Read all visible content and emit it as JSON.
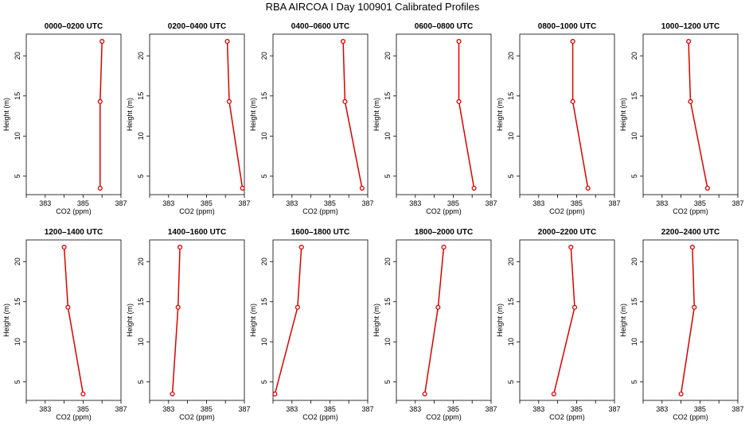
{
  "title": "RBA AIRCOA I  Day 100901  Calibrated Profiles",
  "chart_data": {
    "type": "line",
    "xlabel": "CO2 (ppm)",
    "ylabel": "Height (m)",
    "xlim": [
      382,
      387
    ],
    "ylim": [
      2.7,
      22.7
    ],
    "xticks": [
      383,
      385,
      387
    ],
    "yticks": [
      5,
      10,
      15,
      20
    ],
    "grid": false,
    "series_color": "#dd0000",
    "panels": [
      {
        "title": "0000–0200 UTC",
        "x": [
          385.9,
          385.9,
          386.0
        ],
        "y": [
          3.5,
          14.3,
          21.8
        ]
      },
      {
        "title": "0200–0400 UTC",
        "x": [
          386.9,
          386.2,
          386.1
        ],
        "y": [
          3.5,
          14.3,
          21.8
        ]
      },
      {
        "title": "0400–0600 UTC",
        "x": [
          386.7,
          385.8,
          385.7
        ],
        "y": [
          3.5,
          14.3,
          21.8
        ]
      },
      {
        "title": "0600–0800 UTC",
        "x": [
          386.1,
          385.3,
          385.3
        ],
        "y": [
          3.5,
          14.3,
          21.8
        ]
      },
      {
        "title": "0800–1000 UTC",
        "x": [
          385.6,
          384.8,
          384.8
        ],
        "y": [
          3.5,
          14.3,
          21.8
        ]
      },
      {
        "title": "1000–1200 UTC",
        "x": [
          385.4,
          384.5,
          384.4
        ],
        "y": [
          3.5,
          14.3,
          21.8
        ]
      },
      {
        "title": "1200–1400 UTC",
        "x": [
          385.0,
          384.2,
          384.0
        ],
        "y": [
          3.5,
          14.3,
          21.8
        ]
      },
      {
        "title": "1400–1600 UTC",
        "x": [
          383.2,
          383.5,
          383.6
        ],
        "y": [
          3.5,
          14.3,
          21.8
        ]
      },
      {
        "title": "1600–1800 UTC",
        "x": [
          382.1,
          383.3,
          383.5
        ],
        "y": [
          3.5,
          14.3,
          21.8
        ]
      },
      {
        "title": "1800–2000 UTC",
        "x": [
          383.5,
          384.2,
          384.5
        ],
        "y": [
          3.5,
          14.3,
          21.8
        ]
      },
      {
        "title": "2000–2200 UTC",
        "x": [
          383.8,
          384.9,
          384.7
        ],
        "y": [
          3.5,
          14.3,
          21.8
        ]
      },
      {
        "title": "2200–2400 UTC",
        "x": [
          384.0,
          384.7,
          384.6
        ],
        "y": [
          3.5,
          14.3,
          21.8
        ]
      }
    ]
  }
}
